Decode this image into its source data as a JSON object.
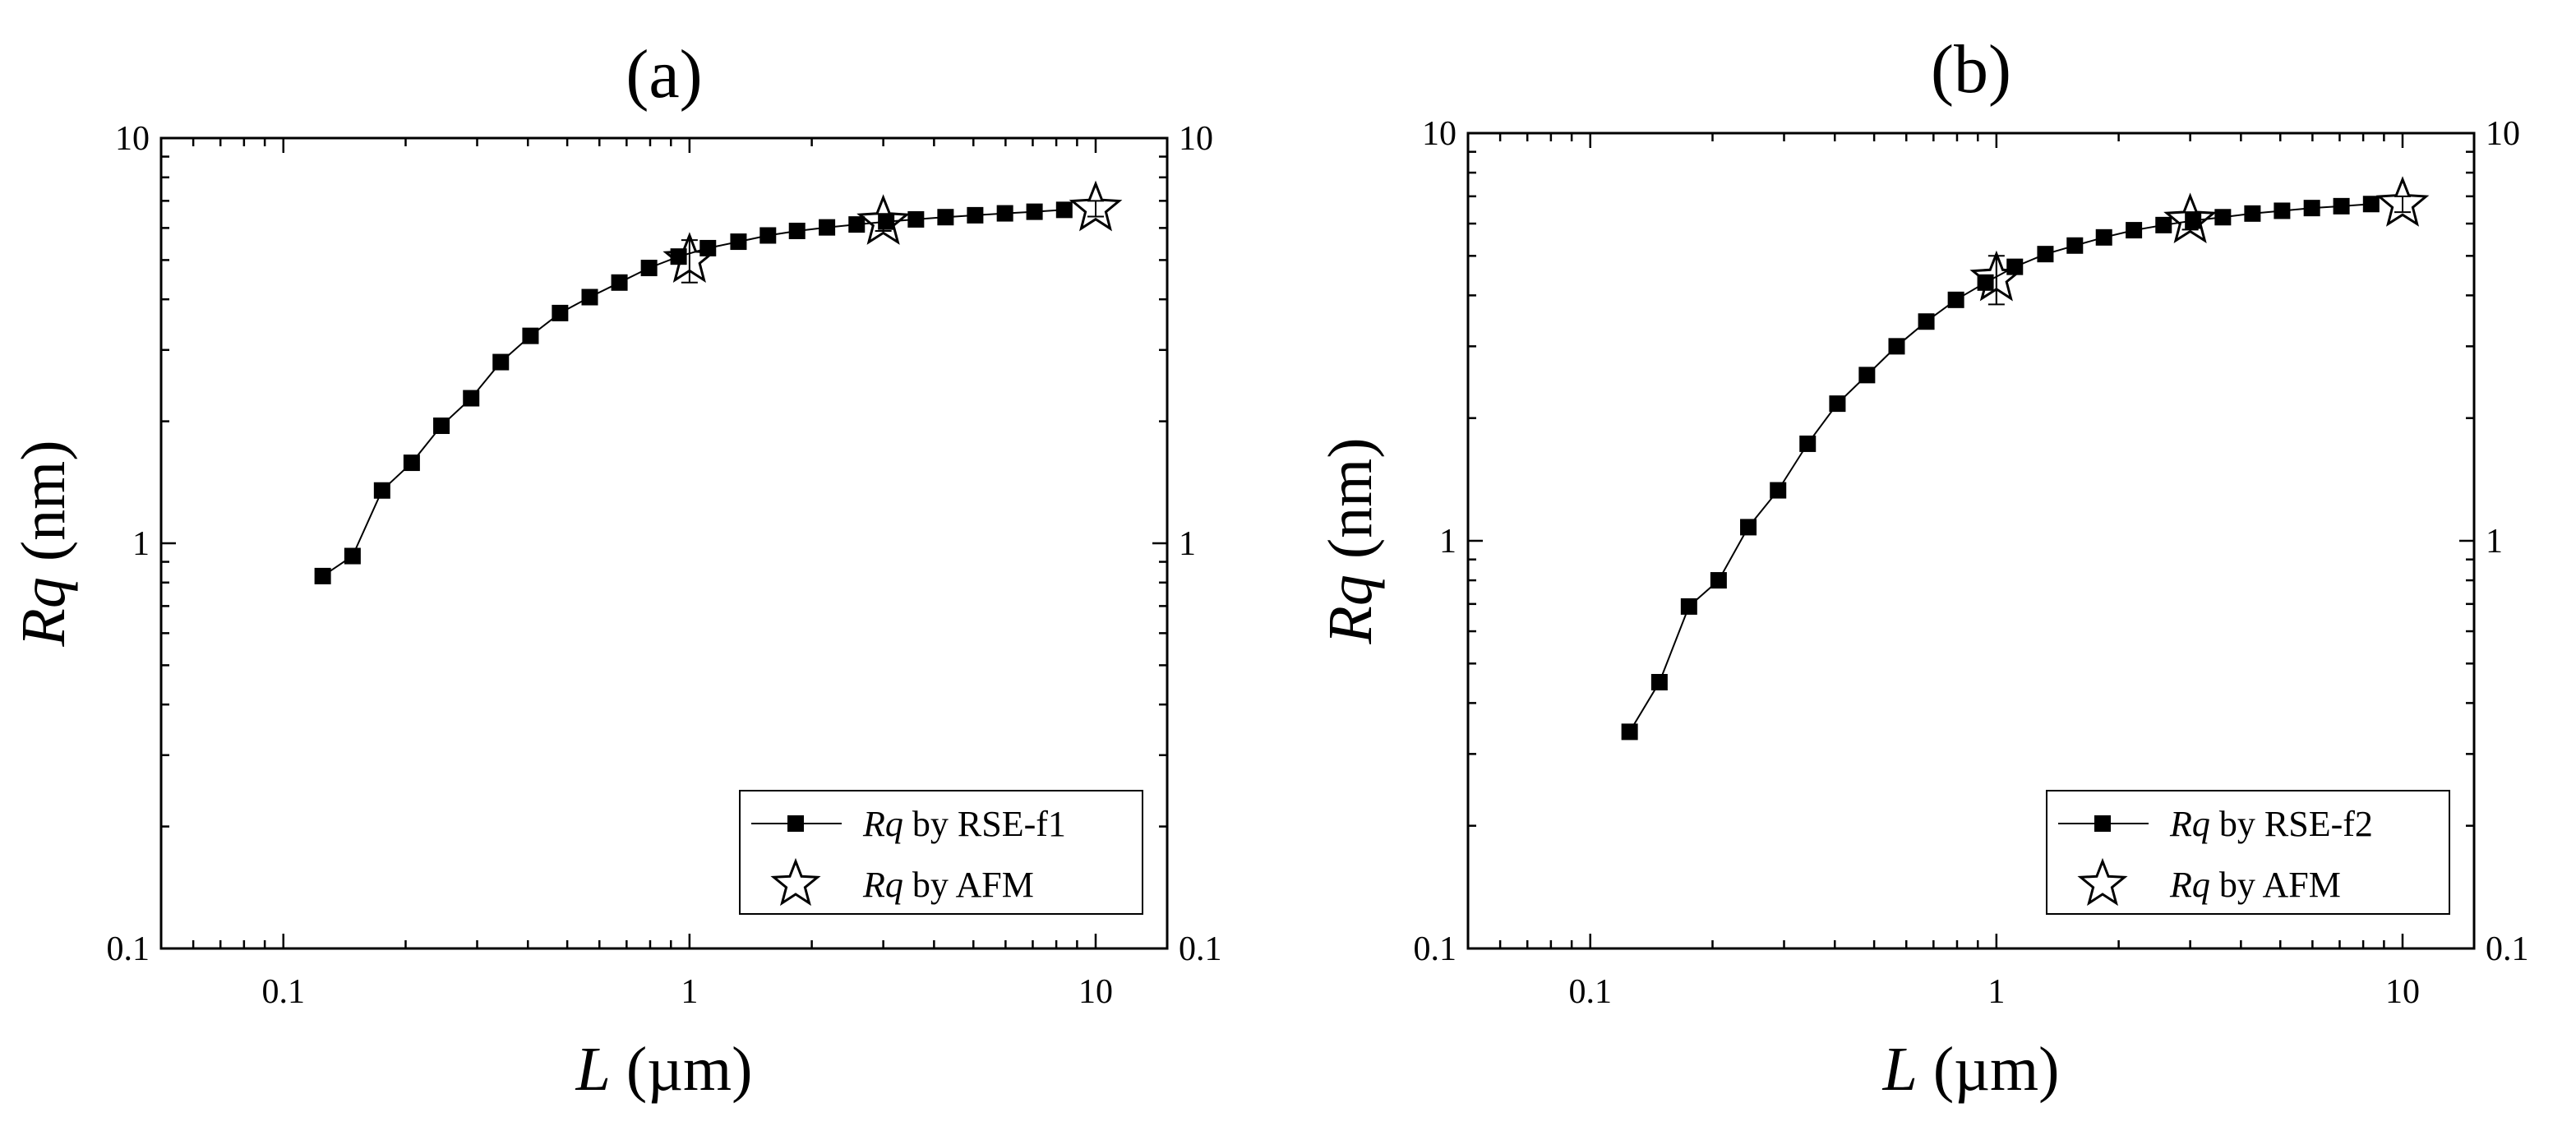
{
  "colors": {
    "axis": "#000000",
    "marker": "#000000",
    "legend_border": "#000000",
    "background": "#ffffff"
  },
  "chart_data": [
    {
      "type": "scatter",
      "panel_label": "(a)",
      "xscale": "log",
      "yscale": "log",
      "xlim": [
        0.05,
        15
      ],
      "ylim": [
        0.1,
        10
      ],
      "xlabel_var": "L",
      "xlabel_unit": " (µm)",
      "ylabel_var": "Rq",
      "ylabel_unit": " (nm)",
      "x_ticks": [
        {
          "value": 0.1,
          "label": "0.1"
        },
        {
          "value": 1,
          "label": "1"
        },
        {
          "value": 10,
          "label": "10"
        }
      ],
      "y_ticks": [
        {
          "value": 0.1,
          "label": "0.1"
        },
        {
          "value": 1,
          "label": "1"
        },
        {
          "value": 10,
          "label": "10"
        }
      ],
      "right_axis_ticks": true,
      "legend_position": "bottom-right",
      "series": [
        {
          "name": "Rq by RSE-f1",
          "legend_var": "Rq",
          "legend_rest": " by RSE-f1",
          "marker": "square",
          "line": true,
          "x": [
            0.125,
            0.148,
            0.175,
            0.207,
            0.245,
            0.29,
            0.343,
            0.406,
            0.48,
            0.568,
            0.672,
            0.795,
            0.94,
            1.11,
            1.32,
            1.56,
            1.84,
            2.18,
            2.58,
            3.05,
            3.61,
            4.27,
            5.05,
            5.98,
            7.07,
            8.37
          ],
          "y": [
            0.83,
            0.93,
            1.35,
            1.58,
            1.95,
            2.28,
            2.8,
            3.25,
            3.7,
            4.05,
            4.4,
            4.78,
            5.1,
            5.35,
            5.55,
            5.75,
            5.9,
            6.02,
            6.12,
            6.22,
            6.3,
            6.38,
            6.45,
            6.52,
            6.58,
            6.65
          ]
        },
        {
          "name": "Rq by AFM",
          "legend_var": "Rq",
          "legend_rest": " by AFM",
          "marker": "star",
          "line": false,
          "x": [
            1,
            3,
            10
          ],
          "y": [
            5.0,
            6.2,
            6.7
          ],
          "error": [
            0.6,
            0.3,
            0.3
          ]
        }
      ]
    },
    {
      "type": "scatter",
      "panel_label": "(b)",
      "xscale": "log",
      "yscale": "log",
      "xlim": [
        0.05,
        15
      ],
      "ylim": [
        0.1,
        10
      ],
      "xlabel_var": "L",
      "xlabel_unit": " (µm)",
      "ylabel_var": "Rq",
      "ylabel_unit": " (nm)",
      "x_ticks": [
        {
          "value": 0.1,
          "label": "0.1"
        },
        {
          "value": 1,
          "label": "1"
        },
        {
          "value": 10,
          "label": "10"
        }
      ],
      "y_ticks": [
        {
          "value": 0.1,
          "label": "0.1"
        },
        {
          "value": 1,
          "label": "1"
        },
        {
          "value": 10,
          "label": "10"
        }
      ],
      "right_axis_ticks": true,
      "legend_position": "bottom-right",
      "series": [
        {
          "name": "Rq by RSE-f2",
          "legend_var": "Rq",
          "legend_rest": " by RSE-f2",
          "marker": "square",
          "line": true,
          "x": [
            0.125,
            0.148,
            0.175,
            0.207,
            0.245,
            0.29,
            0.343,
            0.406,
            0.48,
            0.568,
            0.672,
            0.795,
            0.94,
            1.11,
            1.32,
            1.56,
            1.84,
            2.18,
            2.58,
            3.05,
            3.61,
            4.27,
            5.05,
            5.98,
            7.07,
            8.37
          ],
          "y": [
            0.34,
            0.45,
            0.69,
            0.8,
            1.08,
            1.33,
            1.73,
            2.17,
            2.55,
            3.0,
            3.45,
            3.9,
            4.3,
            4.7,
            5.05,
            5.3,
            5.55,
            5.78,
            5.95,
            6.1,
            6.22,
            6.35,
            6.45,
            6.55,
            6.62,
            6.7
          ],
          "error_at": {
            "x": 1.0,
            "y": 4.4,
            "error": 0.6
          }
        },
        {
          "name": "Rq by AFM",
          "legend_var": "Rq",
          "legend_rest": " by AFM",
          "marker": "star",
          "line": false,
          "x": [
            1,
            3,
            10
          ],
          "y": [
            4.4,
            6.1,
            6.7
          ],
          "error": [
            0.6,
            0.3,
            0.3
          ]
        }
      ]
    }
  ]
}
